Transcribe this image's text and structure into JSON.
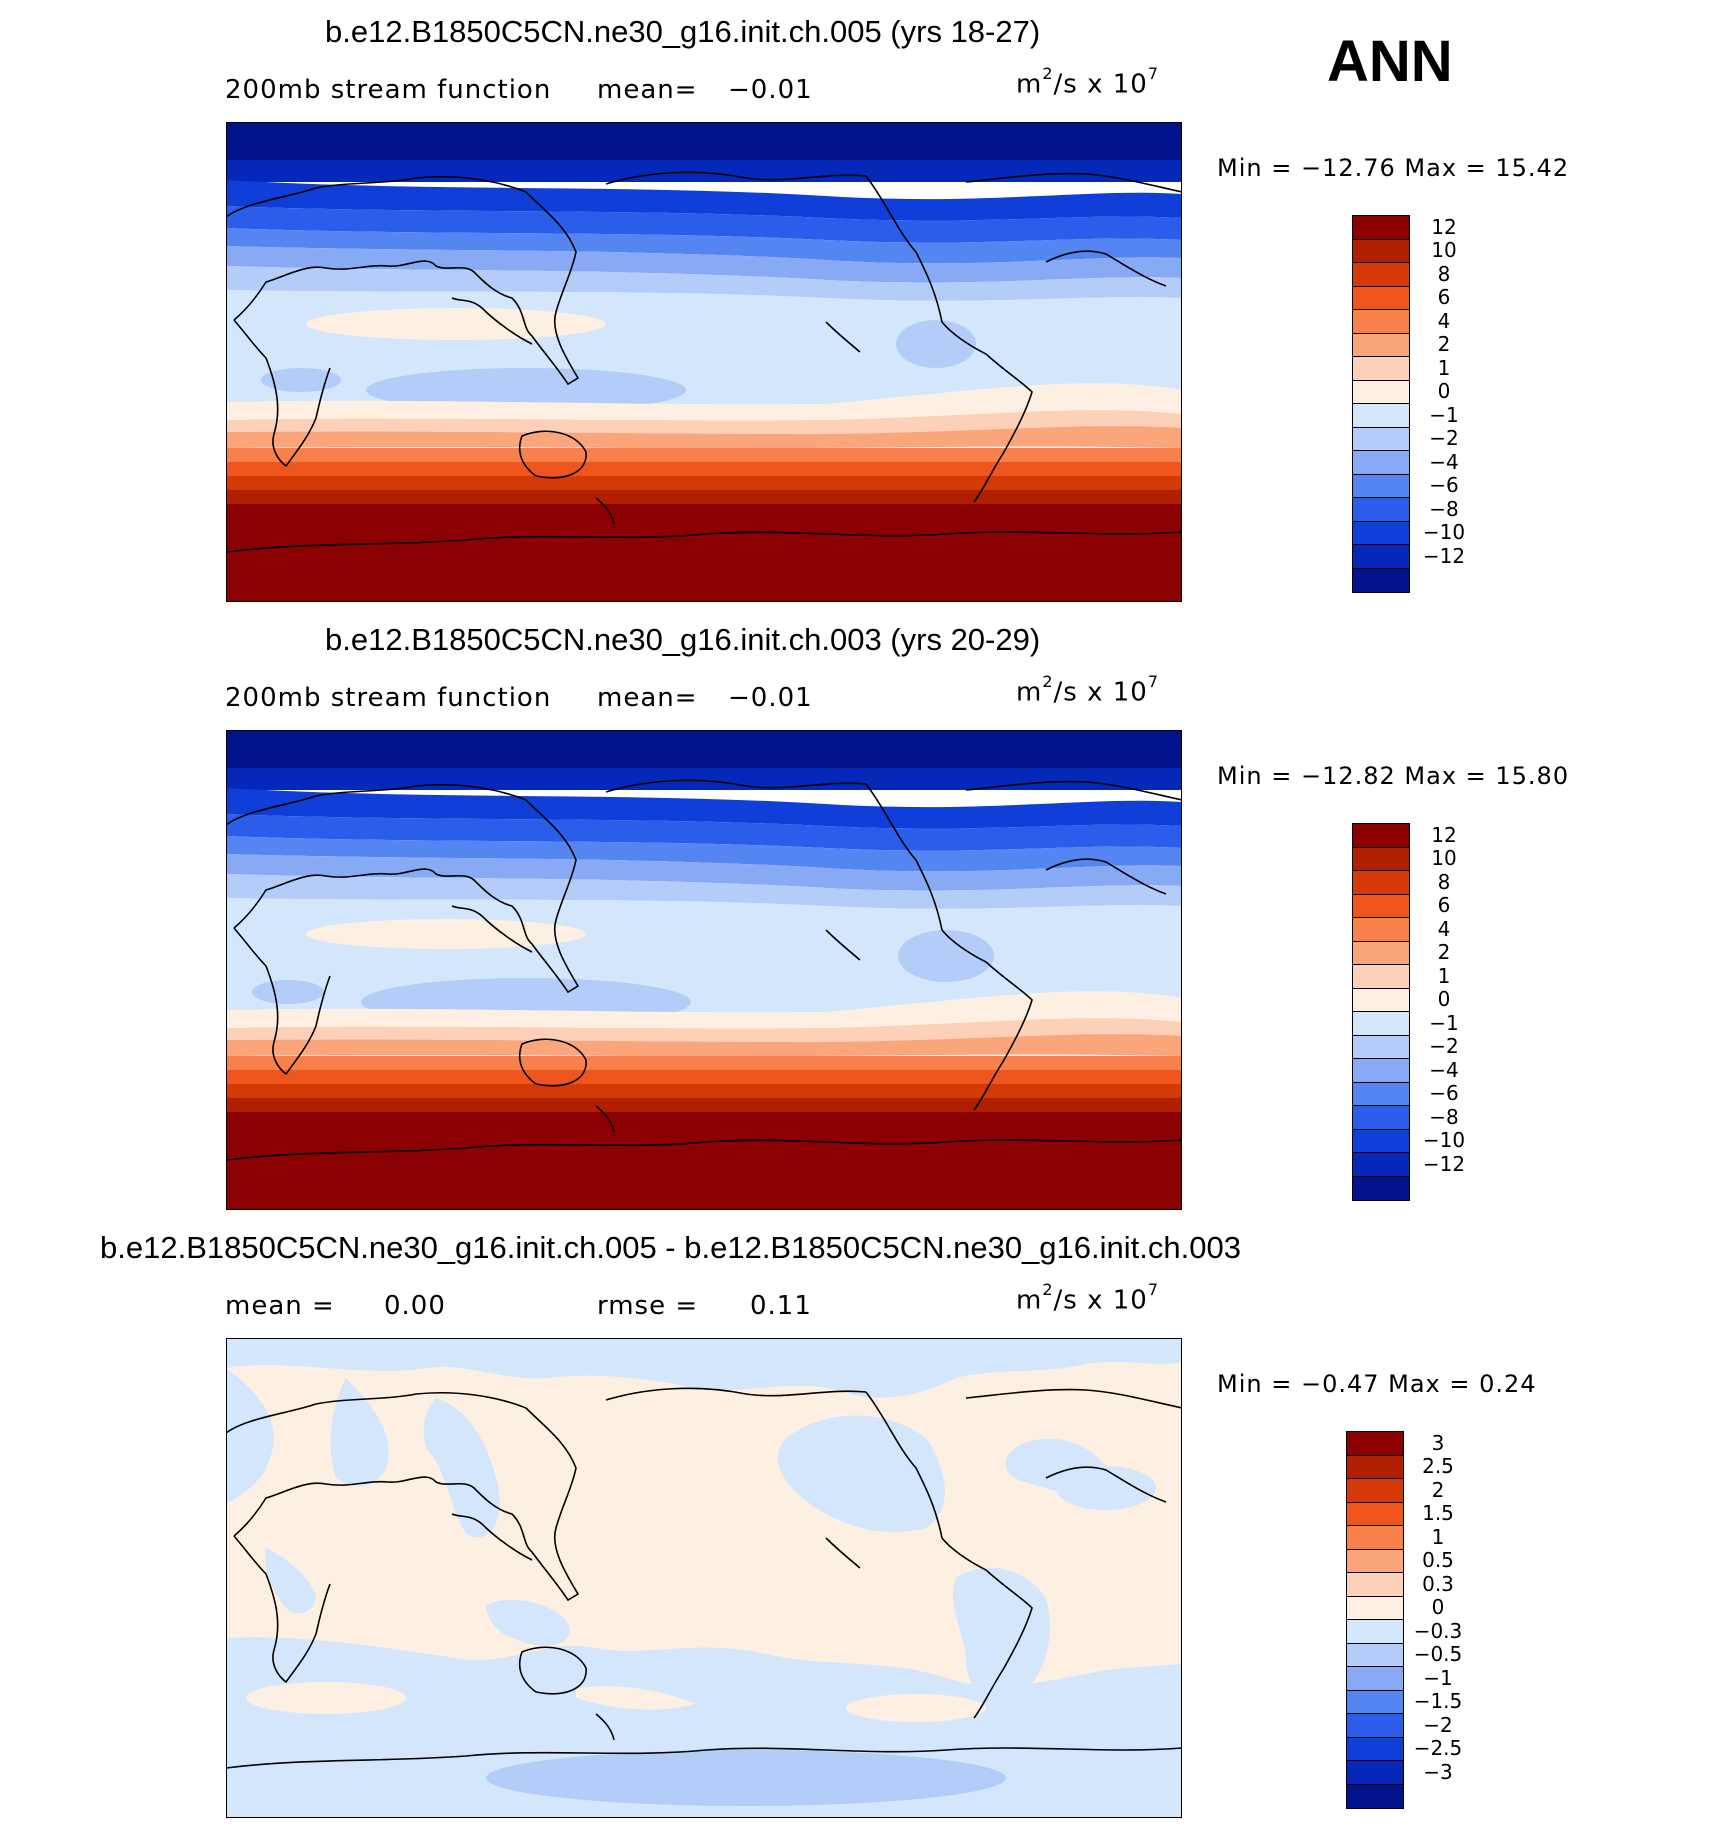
{
  "season": "ANN",
  "units": {
    "base": "m",
    "exp1": "2",
    "mid": "/s x 10",
    "exp2": "7"
  },
  "panels": [
    {
      "title": "b.e12.B1850C5CN.ne30_g16.init.ch.005 (yrs 18-27)",
      "left_label": "200mb stream function",
      "mean_label": "mean=",
      "mean_value": "−0.01",
      "minmax": "Min = −12.76 Max =   15.42",
      "colorbar": {
        "levels": [
          "12",
          "10",
          "8",
          "6",
          "4",
          "2",
          "1",
          "0",
          "−1",
          "−2",
          "−4",
          "−6",
          "−8",
          "−10",
          "−12"
        ],
        "colors": [
          "#8b0000",
          "#b02000",
          "#d33a08",
          "#f0551e",
          "#f8804a",
          "#fba57a",
          "#fdd0b8",
          "#fdf0e2",
          "#d4e6fb",
          "#b4cdf8",
          "#88aaf5",
          "#5485f0",
          "#2a5eea",
          "#0f3ed8",
          "#0628b8",
          "#02138b"
        ]
      }
    },
    {
      "title": "b.e12.B1850C5CN.ne30_g16.init.ch.003 (yrs 20-29)",
      "left_label": "200mb stream function",
      "mean_label": "mean=",
      "mean_value": "−0.01",
      "minmax": "Min = −12.82 Max =   15.80",
      "colorbar": {
        "levels": [
          "12",
          "10",
          "8",
          "6",
          "4",
          "2",
          "1",
          "0",
          "−1",
          "−2",
          "−4",
          "−6",
          "−8",
          "−10",
          "−12"
        ],
        "colors": [
          "#8b0000",
          "#b02000",
          "#d33a08",
          "#f0551e",
          "#f8804a",
          "#fba57a",
          "#fdd0b8",
          "#fdf0e2",
          "#d4e6fb",
          "#b4cdf8",
          "#88aaf5",
          "#5485f0",
          "#2a5eea",
          "#0f3ed8",
          "#0628b8",
          "#02138b"
        ]
      }
    },
    {
      "title": "b.e12.B1850C5CN.ne30_g16.init.ch.005 - b.e12.B1850C5CN.ne30_g16.init.ch.003",
      "left_label": "mean =",
      "mean_value": "0.00",
      "rmse_label": "rmse =",
      "rmse_value": "0.11",
      "minmax": "Min =  −0.47 Max =   0.24",
      "colorbar": {
        "levels": [
          "3",
          "2.5",
          "2",
          "1.5",
          "1",
          "0.5",
          "0.3",
          "0",
          "−0.3",
          "−0.5",
          "−1",
          "−1.5",
          "−2",
          "−2.5",
          "−3"
        ],
        "colors": [
          "#8b0000",
          "#b02000",
          "#d33a08",
          "#f0551e",
          "#f8804a",
          "#fba57a",
          "#fdd0b8",
          "#fdf0e2",
          "#d4e6fb",
          "#b4cdf8",
          "#88aaf5",
          "#5485f0",
          "#2a5eea",
          "#0f3ed8",
          "#0628b8",
          "#02138b"
        ]
      }
    }
  ],
  "chart_data": {
    "type": "heatmap",
    "fields": [
      {
        "panel": 0,
        "min": -12.76,
        "max": 15.42,
        "mean": -0.01
      },
      {
        "panel": 1,
        "min": -12.82,
        "max": 15.8,
        "mean": -0.01
      },
      {
        "panel": 2,
        "min": -0.47,
        "max": 0.24,
        "mean": 0.0,
        "rmse": 0.11
      }
    ]
  }
}
